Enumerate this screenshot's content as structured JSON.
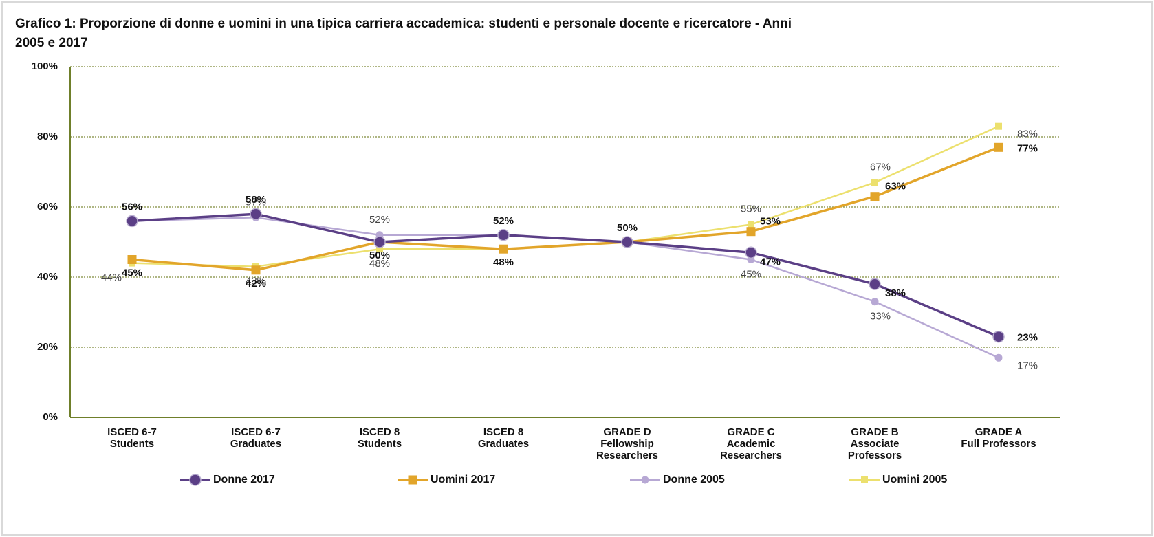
{
  "chart_data": {
    "type": "line",
    "title": [
      "Grafico 1: Proporzione di donne e uomini in una tipica carriera accademica: studenti e personale docente e ricercatore - Anni",
      "2005 e 2017"
    ],
    "categories": [
      [
        "ISCED 6-7",
        "Students"
      ],
      [
        "ISCED 6-7",
        "Graduates"
      ],
      [
        "ISCED 8",
        "Students"
      ],
      [
        "ISCED 8",
        "Graduates"
      ],
      [
        "GRADE D",
        "Fellowship",
        "Researchers"
      ],
      [
        "GRADE C",
        "Academic",
        "Researchers"
      ],
      [
        "GRADE B",
        "Associate",
        "Professors"
      ],
      [
        "GRADE A",
        "Full Professors"
      ]
    ],
    "series": [
      {
        "name": "Donne 2017",
        "color": "#5b3f86",
        "values": [
          56,
          58,
          50,
          52,
          50,
          47,
          38,
          23
        ],
        "value_labels": [
          "56%",
          "58%",
          null,
          "52%",
          "50%",
          "47%",
          "38%",
          "23%"
        ]
      },
      {
        "name": "Uomini 2017",
        "color": "#e2a52a",
        "values": [
          45,
          42,
          50,
          48,
          50,
          53,
          63,
          77
        ],
        "value_labels": [
          "45%",
          "42%",
          "50%",
          "48%",
          null,
          "53%",
          "63%",
          "77%"
        ]
      },
      {
        "name": "Donne 2005",
        "color": "#b7a8d4",
        "values": [
          56,
          57,
          52,
          52,
          50,
          45,
          33,
          17
        ],
        "value_labels": [
          null,
          "57%",
          "52%",
          null,
          null,
          "45%",
          "33%",
          "17%"
        ]
      },
      {
        "name": "Uomini 2005",
        "color": "#ece06e",
        "values": [
          44,
          43,
          48,
          48,
          50,
          55,
          67,
          83
        ],
        "value_labels": [
          "44%",
          "43%",
          "48%",
          null,
          null,
          "55%",
          "67%",
          "83%"
        ]
      }
    ],
    "ylim": [
      0,
      100
    ],
    "yticks": [
      {
        "value": 0,
        "label": "0%"
      },
      {
        "value": 20,
        "label": "20%"
      },
      {
        "value": 40,
        "label": "40%"
      },
      {
        "value": 60,
        "label": "60%"
      },
      {
        "value": 80,
        "label": "80%"
      },
      {
        "value": 100,
        "label": "100%"
      }
    ],
    "grid": true
  }
}
